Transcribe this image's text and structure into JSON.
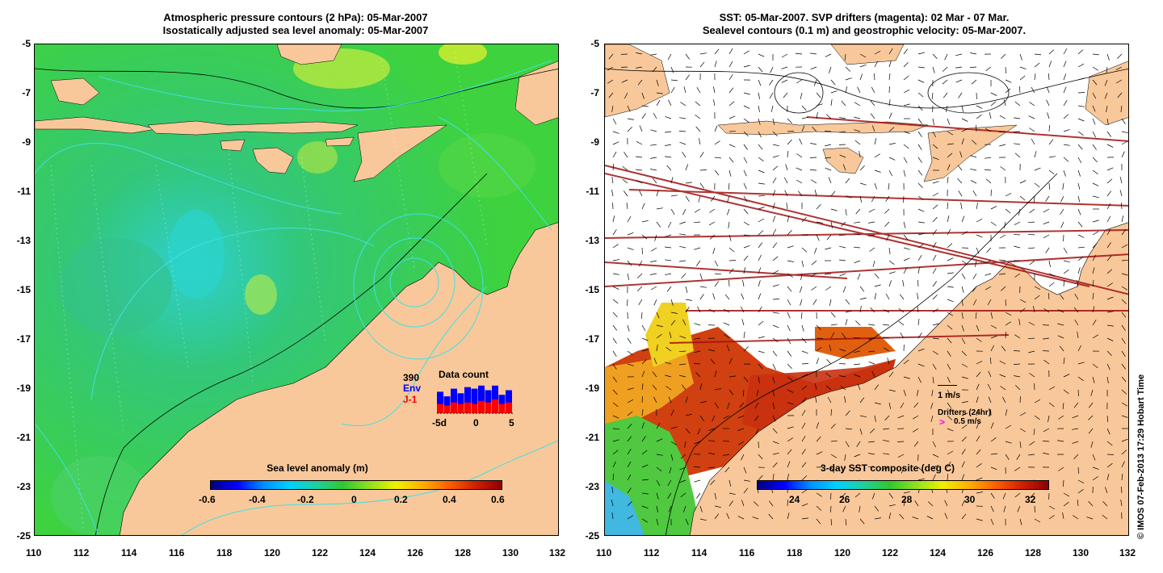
{
  "left_panel": {
    "title_line1": "Atmospheric pressure contours (2 hPa): 05-Mar-2007",
    "title_line2": "Isostatically adjusted sea level anomaly: 05-Mar-2007",
    "colorbar_label": "Sea level anomaly (m)",
    "colorbar_ticks": [
      "-0.6",
      "-0.4",
      "-0.2",
      "0",
      "0.2",
      "0.4",
      "0.6"
    ],
    "inset": {
      "title": "Data count",
      "count": "390",
      "series1": "Env",
      "series2": "J-1",
      "xticks": [
        "-5d",
        "0",
        "5"
      ],
      "series1_color": "#0000ff",
      "series2_color": "#ff0000"
    }
  },
  "right_panel": {
    "title_line1": "SST: 05-Mar-2007. SVP drifters (magenta): 02 Mar - 07 Mar.",
    "title_line2": "Sealevel contours (0.1 m) and geostrophic velocity: 05-Mar-2007.",
    "colorbar_label": "3-day SST composite (deg C)",
    "colorbar_ticks": [
      "24",
      "26",
      "28",
      "30",
      "32"
    ],
    "velocity_key": "1 m/s",
    "drifters_key": "Drifters (24hr)",
    "drifters_speed": "0.5 m/s",
    "drifter_color": "#ff00ff"
  },
  "axes": {
    "x_ticks": [
      "110",
      "112",
      "114",
      "116",
      "118",
      "120",
      "122",
      "124",
      "126",
      "128",
      "130",
      "132"
    ],
    "y_ticks": [
      "-5",
      "-7",
      "-9",
      "-11",
      "-13",
      "-15",
      "-17",
      "-19",
      "-21",
      "-23",
      "-25"
    ]
  },
  "credit": "© IMOS 07-Feb-2013 17:29 Hobart Time",
  "colors": {
    "land": "#f9c89a",
    "ocean_green": "#33cc33",
    "contour_cyan": "#40e0e0"
  }
}
